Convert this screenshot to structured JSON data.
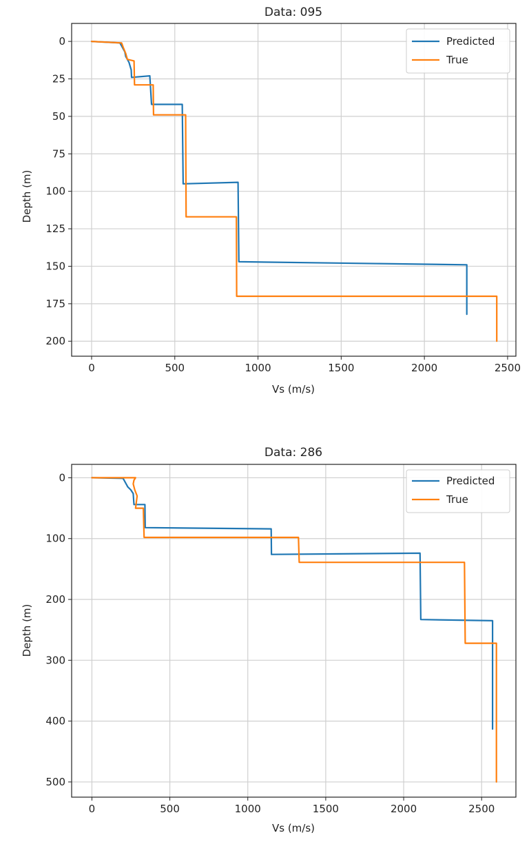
{
  "chart_data": [
    {
      "type": "line",
      "title": "Data: 095",
      "xlabel": "Vs (m/s)",
      "ylabel": "Depth (m)",
      "xlim": [
        -120,
        2550
      ],
      "ylim": [
        210,
        -12
      ],
      "y_inverted": true,
      "grid": true,
      "legend_placement": "top-right",
      "x_ticks": [
        0,
        500,
        1000,
        1500,
        2000,
        2500
      ],
      "y_ticks": [
        0,
        25,
        50,
        75,
        100,
        125,
        150,
        175,
        200
      ],
      "series": [
        {
          "name": "Predicted",
          "color": "#1f77b4",
          "points": [
            [
              0,
              0
            ],
            [
              170,
              1
            ],
            [
              180,
              3
            ],
            [
              200,
              7
            ],
            [
              205,
              10
            ],
            [
              225,
              14
            ],
            [
              238,
              19
            ],
            [
              240,
              24
            ],
            [
              350,
              23
            ],
            [
              360,
              42
            ],
            [
              545,
              42
            ],
            [
              550,
              95
            ],
            [
              880,
              94
            ],
            [
              885,
              147
            ],
            [
              2255,
              149
            ],
            [
              2255,
              182
            ]
          ]
        },
        {
          "name": "True",
          "color": "#ff7f0e",
          "points": [
            [
              0,
              0
            ],
            [
              180,
              1
            ],
            [
              190,
              4
            ],
            [
              205,
              8
            ],
            [
              215,
              12
            ],
            [
              255,
              13
            ],
            [
              258,
              29
            ],
            [
              370,
              29
            ],
            [
              372,
              49
            ],
            [
              565,
              49
            ],
            [
              568,
              117
            ],
            [
              870,
              117
            ],
            [
              872,
              170
            ],
            [
              2435,
              170
            ],
            [
              2435,
              200
            ]
          ]
        }
      ]
    },
    {
      "type": "line",
      "title": "Data: 286",
      "xlabel": "Vs (m/s)",
      "ylabel": "Depth (m)",
      "xlim": [
        -130,
        2720
      ],
      "ylim": [
        525,
        -22
      ],
      "y_inverted": true,
      "grid": true,
      "legend_placement": "top-right",
      "x_ticks": [
        0,
        500,
        1000,
        1500,
        2000,
        2500
      ],
      "y_ticks": [
        0,
        100,
        200,
        300,
        400,
        500
      ],
      "series": [
        {
          "name": "Predicted",
          "color": "#1f77b4",
          "points": [
            [
              0,
              0
            ],
            [
              200,
              1
            ],
            [
              215,
              8
            ],
            [
              230,
              15
            ],
            [
              250,
              20
            ],
            [
              265,
              26
            ],
            [
              270,
              44
            ],
            [
              340,
              44
            ],
            [
              342,
              82
            ],
            [
              1150,
              84
            ],
            [
              1152,
              126
            ],
            [
              2105,
              124
            ],
            [
              2110,
              233
            ],
            [
              2570,
              235
            ],
            [
              2570,
              413
            ]
          ]
        },
        {
          "name": "True",
          "color": "#ff7f0e",
          "points": [
            [
              0,
              0
            ],
            [
              280,
              0
            ],
            [
              270,
              4
            ],
            [
              265,
              10
            ],
            [
              275,
              20
            ],
            [
              290,
              30
            ],
            [
              280,
              50
            ],
            [
              330,
              50
            ],
            [
              335,
              98
            ],
            [
              1325,
              98
            ],
            [
              1330,
              139
            ],
            [
              2390,
              139
            ],
            [
              2395,
              272
            ],
            [
              2595,
              272
            ],
            [
              2595,
              500
            ]
          ]
        }
      ]
    }
  ]
}
